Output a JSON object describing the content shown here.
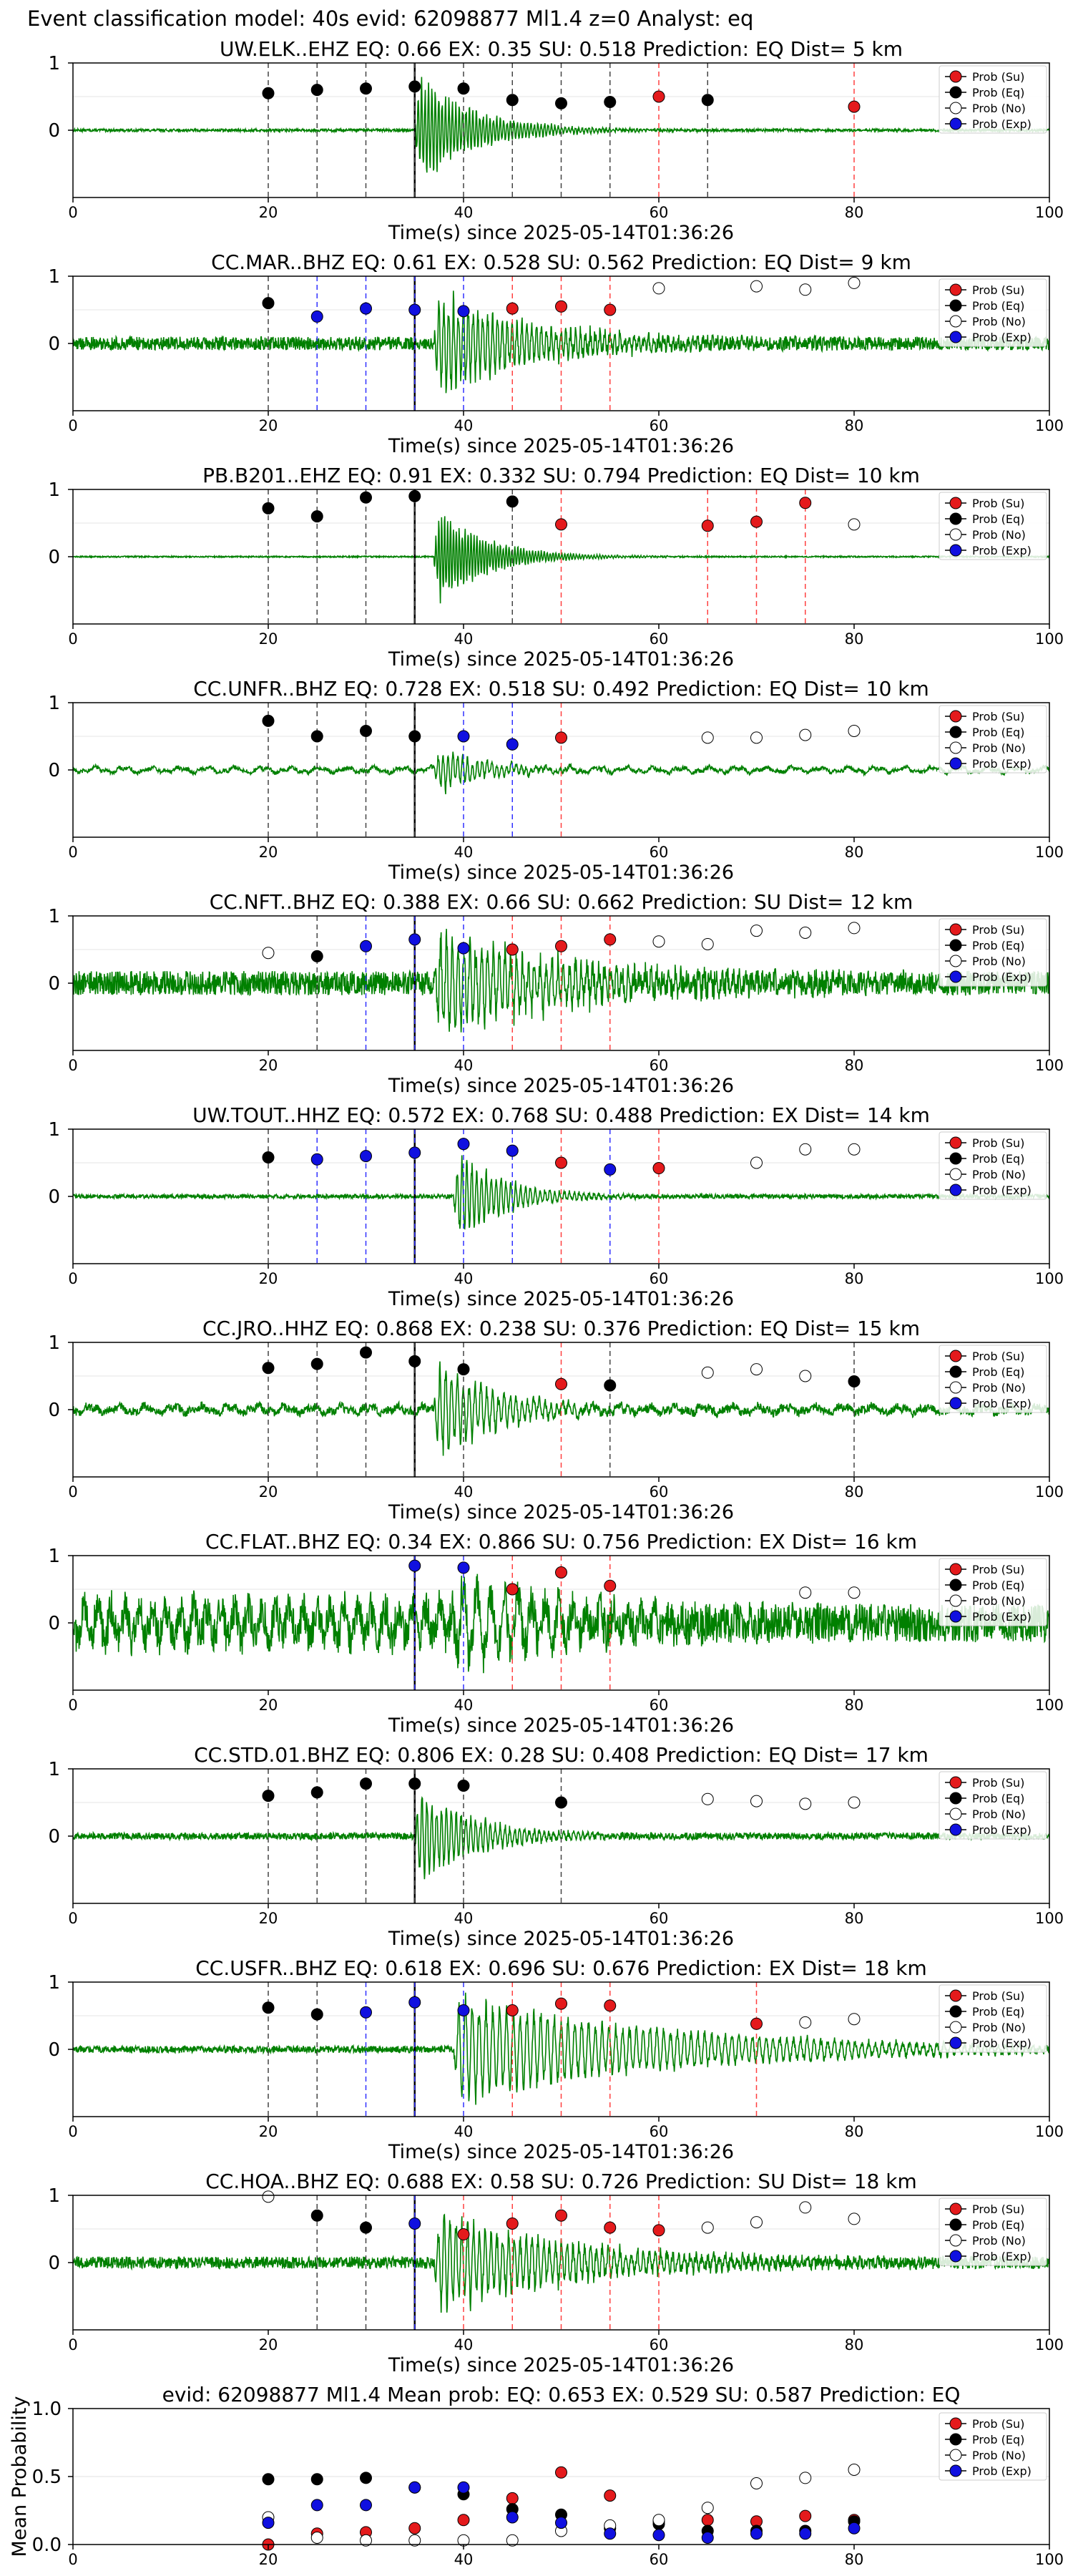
{
  "figure_title": "Event classification model: 40s evid: 62098877 Ml1.4 z=0 Analyst: eq",
  "legend_labels": [
    "Prob (Su)",
    "Prob (Eq)",
    "Prob (No)",
    "Prob (Exp)"
  ],
  "colors": {
    "su": "#e41a1c",
    "eq": "#000000",
    "no": "#ffffff",
    "exp": "#1010e0",
    "wave": "#008000"
  },
  "chart_data": [
    {
      "type": "line",
      "title": "UW.ELK..EHZ   EQ: 0.66  EX: 0.35  SU: 0.518   Prediction: EQ    Dist= 5 km",
      "xlabel": "Time(s) since 2025-05-14T01:36:26",
      "xlim": [
        0,
        100
      ],
      "ylim": [
        -1,
        1
      ],
      "xticks": [
        0,
        20,
        40,
        60,
        80,
        100
      ],
      "yticks": [
        0,
        1
      ],
      "onset": 35,
      "wave": {
        "noise": 0.02,
        "peak": 0.9,
        "decay": 6,
        "period": 0.35,
        "long": 0
      },
      "points": [
        {
          "cls": "eq",
          "t": 20,
          "p": 0.55
        },
        {
          "cls": "eq",
          "t": 25,
          "p": 0.6
        },
        {
          "cls": "eq",
          "t": 30,
          "p": 0.62
        },
        {
          "cls": "eq",
          "t": 35,
          "p": 0.65
        },
        {
          "cls": "eq",
          "t": 40,
          "p": 0.62
        },
        {
          "cls": "eq",
          "t": 45,
          "p": 0.45
        },
        {
          "cls": "eq",
          "t": 50,
          "p": 0.4
        },
        {
          "cls": "eq",
          "t": 55,
          "p": 0.42
        },
        {
          "cls": "su",
          "t": 60,
          "p": 0.5
        },
        {
          "cls": "eq",
          "t": 65,
          "p": 0.45
        },
        {
          "cls": "su",
          "t": 80,
          "p": 0.35
        }
      ]
    },
    {
      "type": "line",
      "title": "CC.MAR..BHZ   EQ: 0.61  EX: 0.528  SU: 0.562   Prediction: EQ    Dist= 9 km",
      "xlabel": "Time(s) since 2025-05-14T01:36:26",
      "xlim": [
        0,
        100
      ],
      "ylim": [
        -1,
        1
      ],
      "xticks": [
        0,
        20,
        40,
        60,
        80,
        100
      ],
      "yticks": [
        0,
        1
      ],
      "onset": 37,
      "wave": {
        "noise": 0.1,
        "peak": 0.9,
        "decay": 10,
        "period": 0.5,
        "long": 0
      },
      "points": [
        {
          "cls": "eq",
          "t": 20,
          "p": 0.6
        },
        {
          "cls": "exp",
          "t": 25,
          "p": 0.4
        },
        {
          "cls": "exp",
          "t": 30,
          "p": 0.52
        },
        {
          "cls": "exp",
          "t": 35,
          "p": 0.5
        },
        {
          "cls": "exp",
          "t": 40,
          "p": 0.48
        },
        {
          "cls": "su",
          "t": 45,
          "p": 0.52
        },
        {
          "cls": "su",
          "t": 50,
          "p": 0.55
        },
        {
          "cls": "su",
          "t": 55,
          "p": 0.5
        },
        {
          "cls": "no",
          "t": 60,
          "p": 0.82
        },
        {
          "cls": "no",
          "t": 70,
          "p": 0.85
        },
        {
          "cls": "no",
          "t": 75,
          "p": 0.8
        },
        {
          "cls": "no",
          "t": 80,
          "p": 0.9
        }
      ]
    },
    {
      "type": "line",
      "title": "PB.B201..EHZ   EQ: 0.91  EX: 0.332  SU: 0.794   Prediction: EQ    Dist= 10 km",
      "xlabel": "Time(s) since 2025-05-14T01:36:26",
      "xlim": [
        0,
        100
      ],
      "ylim": [
        -1,
        1
      ],
      "xticks": [
        0,
        20,
        40,
        60,
        80,
        100
      ],
      "yticks": [
        0,
        1
      ],
      "onset": 37,
      "wave": {
        "noise": 0.01,
        "peak": 0.85,
        "decay": 5,
        "period": 0.3,
        "long": 0
      },
      "points": [
        {
          "cls": "eq",
          "t": 20,
          "p": 0.72
        },
        {
          "cls": "eq",
          "t": 25,
          "p": 0.6
        },
        {
          "cls": "eq",
          "t": 30,
          "p": 0.88
        },
        {
          "cls": "eq",
          "t": 35,
          "p": 0.9
        },
        {
          "cls": "eq",
          "t": 45,
          "p": 0.82
        },
        {
          "cls": "su",
          "t": 50,
          "p": 0.48
        },
        {
          "cls": "su",
          "t": 65,
          "p": 0.46
        },
        {
          "cls": "su",
          "t": 70,
          "p": 0.52
        },
        {
          "cls": "su",
          "t": 75,
          "p": 0.8
        },
        {
          "cls": "no",
          "t": 80,
          "p": 0.48
        }
      ]
    },
    {
      "type": "line",
      "title": "CC.UNFR..BHZ   EQ: 0.728  EX: 0.518  SU: 0.492   Prediction: EQ    Dist= 10 km",
      "xlabel": "Time(s) since 2025-05-14T01:36:26",
      "xlim": [
        0,
        100
      ],
      "ylim": [
        -1,
        1
      ],
      "xticks": [
        0,
        20,
        40,
        60,
        80,
        100
      ],
      "yticks": [
        0,
        1
      ],
      "onset": 37,
      "wave": {
        "noise": 0.03,
        "peak": 0.4,
        "decay": 5,
        "period": 0.5,
        "long": 0.03
      },
      "points": [
        {
          "cls": "eq",
          "t": 20,
          "p": 0.73
        },
        {
          "cls": "eq",
          "t": 25,
          "p": 0.5
        },
        {
          "cls": "eq",
          "t": 30,
          "p": 0.58
        },
        {
          "cls": "eq",
          "t": 35,
          "p": 0.5
        },
        {
          "cls": "exp",
          "t": 40,
          "p": 0.5
        },
        {
          "cls": "exp",
          "t": 45,
          "p": 0.38
        },
        {
          "cls": "su",
          "t": 50,
          "p": 0.48
        },
        {
          "cls": "no",
          "t": 65,
          "p": 0.48
        },
        {
          "cls": "no",
          "t": 70,
          "p": 0.48
        },
        {
          "cls": "no",
          "t": 75,
          "p": 0.52
        },
        {
          "cls": "no",
          "t": 80,
          "p": 0.58
        }
      ]
    },
    {
      "type": "line",
      "title": "CC.NFT..BHZ   EQ: 0.388  EX: 0.66  SU: 0.662   Prediction: SU    Dist= 12 km",
      "xlabel": "Time(s) since 2025-05-14T01:36:26",
      "xlim": [
        0,
        100
      ],
      "ylim": [
        -1,
        1
      ],
      "xticks": [
        0,
        20,
        40,
        60,
        80,
        100
      ],
      "yticks": [
        0,
        1
      ],
      "onset": 37,
      "wave": {
        "noise": 0.18,
        "peak": 0.9,
        "decay": 14,
        "period": 0.6,
        "long": 0
      },
      "points": [
        {
          "cls": "no",
          "t": 20,
          "p": 0.45
        },
        {
          "cls": "eq",
          "t": 25,
          "p": 0.4
        },
        {
          "cls": "exp",
          "t": 30,
          "p": 0.55
        },
        {
          "cls": "exp",
          "t": 35,
          "p": 0.65
        },
        {
          "cls": "exp",
          "t": 40,
          "p": 0.52
        },
        {
          "cls": "su",
          "t": 45,
          "p": 0.5
        },
        {
          "cls": "su",
          "t": 50,
          "p": 0.55
        },
        {
          "cls": "su",
          "t": 55,
          "p": 0.65
        },
        {
          "cls": "no",
          "t": 60,
          "p": 0.62
        },
        {
          "cls": "no",
          "t": 65,
          "p": 0.58
        },
        {
          "cls": "no",
          "t": 70,
          "p": 0.78
        },
        {
          "cls": "no",
          "t": 75,
          "p": 0.75
        },
        {
          "cls": "no",
          "t": 80,
          "p": 0.82
        }
      ]
    },
    {
      "type": "line",
      "title": "UW.TOUT..HHZ   EQ: 0.572  EX: 0.768  SU: 0.488   Prediction: EX    Dist= 14 km",
      "xlabel": "Time(s) since 2025-05-14T01:36:26",
      "xlim": [
        0,
        100
      ],
      "ylim": [
        -1,
        1
      ],
      "xticks": [
        0,
        20,
        40,
        60,
        80,
        100
      ],
      "yticks": [
        0,
        1
      ],
      "onset": 39,
      "wave": {
        "noise": 0.03,
        "peak": 0.8,
        "decay": 5,
        "period": 0.5,
        "long": 0
      },
      "points": [
        {
          "cls": "eq",
          "t": 20,
          "p": 0.58
        },
        {
          "cls": "exp",
          "t": 25,
          "p": 0.55
        },
        {
          "cls": "exp",
          "t": 30,
          "p": 0.6
        },
        {
          "cls": "exp",
          "t": 35,
          "p": 0.65
        },
        {
          "cls": "exp",
          "t": 40,
          "p": 0.78
        },
        {
          "cls": "exp",
          "t": 45,
          "p": 0.68
        },
        {
          "cls": "su",
          "t": 50,
          "p": 0.5
        },
        {
          "cls": "exp",
          "t": 55,
          "p": 0.4
        },
        {
          "cls": "su",
          "t": 60,
          "p": 0.42
        },
        {
          "cls": "no",
          "t": 70,
          "p": 0.5
        },
        {
          "cls": "no",
          "t": 75,
          "p": 0.7
        },
        {
          "cls": "no",
          "t": 80,
          "p": 0.7
        }
      ]
    },
    {
      "type": "line",
      "title": "CC.JRO..HHZ   EQ: 0.868  EX: 0.238  SU: 0.376   Prediction: EQ    Dist= 15 km",
      "xlabel": "Time(s) since 2025-05-14T01:36:26",
      "xlim": [
        0,
        100
      ],
      "ylim": [
        -1,
        1
      ],
      "xticks": [
        0,
        20,
        40,
        60,
        80,
        100
      ],
      "yticks": [
        0,
        1
      ],
      "onset": 37,
      "wave": {
        "noise": 0.06,
        "peak": 0.9,
        "decay": 6,
        "period": 0.6,
        "long": 0.04
      },
      "points": [
        {
          "cls": "eq",
          "t": 20,
          "p": 0.62
        },
        {
          "cls": "eq",
          "t": 25,
          "p": 0.68
        },
        {
          "cls": "eq",
          "t": 30,
          "p": 0.85
        },
        {
          "cls": "eq",
          "t": 35,
          "p": 0.72
        },
        {
          "cls": "eq",
          "t": 40,
          "p": 0.6
        },
        {
          "cls": "su",
          "t": 50,
          "p": 0.38
        },
        {
          "cls": "eq",
          "t": 55,
          "p": 0.36
        },
        {
          "cls": "no",
          "t": 65,
          "p": 0.55
        },
        {
          "cls": "no",
          "t": 70,
          "p": 0.6
        },
        {
          "cls": "no",
          "t": 75,
          "p": 0.5
        },
        {
          "cls": "eq",
          "t": 80,
          "p": 0.42
        }
      ]
    },
    {
      "type": "line",
      "title": "CC.FLAT..BHZ   EQ: 0.34  EX: 0.866  SU: 0.756   Prediction: EX    Dist= 16 km",
      "xlabel": "Time(s) since 2025-05-14T01:36:26",
      "xlim": [
        0,
        100
      ],
      "ylim": [
        -1,
        1
      ],
      "xticks": [
        0,
        20,
        40,
        60,
        80,
        100
      ],
      "yticks": [
        0,
        1
      ],
      "onset": 39,
      "wave": {
        "noise": 0.28,
        "peak": 0.8,
        "decay": 12,
        "period": 1.4,
        "long": 0
      },
      "points": [
        {
          "cls": "exp",
          "t": 35,
          "p": 0.85
        },
        {
          "cls": "exp",
          "t": 40,
          "p": 0.82
        },
        {
          "cls": "su",
          "t": 45,
          "p": 0.5
        },
        {
          "cls": "su",
          "t": 50,
          "p": 0.75
        },
        {
          "cls": "su",
          "t": 55,
          "p": 0.55
        },
        {
          "cls": "no",
          "t": 75,
          "p": 0.45
        },
        {
          "cls": "no",
          "t": 80,
          "p": 0.45
        }
      ]
    },
    {
      "type": "line",
      "title": "CC.STD.01.BHZ   EQ: 0.806  EX: 0.28  SU: 0.408   Prediction: EQ    Dist= 17 km",
      "xlabel": "Time(s) since 2025-05-14T01:36:26",
      "xlim": [
        0,
        100
      ],
      "ylim": [
        -1,
        1
      ],
      "xticks": [
        0,
        20,
        40,
        60,
        80,
        100
      ],
      "yticks": [
        0,
        1
      ],
      "onset": 35,
      "wave": {
        "noise": 0.05,
        "peak": 0.8,
        "decay": 6,
        "period": 0.5,
        "long": 0
      },
      "points": [
        {
          "cls": "eq",
          "t": 20,
          "p": 0.6
        },
        {
          "cls": "eq",
          "t": 25,
          "p": 0.65
        },
        {
          "cls": "eq",
          "t": 30,
          "p": 0.78
        },
        {
          "cls": "eq",
          "t": 35,
          "p": 0.78
        },
        {
          "cls": "eq",
          "t": 40,
          "p": 0.75
        },
        {
          "cls": "eq",
          "t": 50,
          "p": 0.5
        },
        {
          "cls": "no",
          "t": 65,
          "p": 0.55
        },
        {
          "cls": "no",
          "t": 70,
          "p": 0.52
        },
        {
          "cls": "no",
          "t": 75,
          "p": 0.48
        },
        {
          "cls": "no",
          "t": 80,
          "p": 0.5
        }
      ]
    },
    {
      "type": "line",
      "title": "CC.USFR..BHZ   EQ: 0.618  EX: 0.696  SU: 0.676   Prediction: EX    Dist= 18 km",
      "xlabel": "Time(s) since 2025-05-14T01:36:26",
      "xlim": [
        0,
        100
      ],
      "ylim": [
        -1,
        1
      ],
      "xticks": [
        0,
        20,
        40,
        60,
        80,
        100
      ],
      "yticks": [
        0,
        1
      ],
      "onset": 39,
      "wave": {
        "noise": 0.05,
        "peak": 0.9,
        "decay": 22,
        "period": 0.7,
        "long": 0
      },
      "points": [
        {
          "cls": "eq",
          "t": 20,
          "p": 0.62
        },
        {
          "cls": "eq",
          "t": 25,
          "p": 0.52
        },
        {
          "cls": "exp",
          "t": 30,
          "p": 0.55
        },
        {
          "cls": "exp",
          "t": 35,
          "p": 0.7
        },
        {
          "cls": "exp",
          "t": 40,
          "p": 0.58
        },
        {
          "cls": "su",
          "t": 45,
          "p": 0.58
        },
        {
          "cls": "su",
          "t": 50,
          "p": 0.68
        },
        {
          "cls": "su",
          "t": 55,
          "p": 0.65
        },
        {
          "cls": "su",
          "t": 70,
          "p": 0.38
        },
        {
          "cls": "no",
          "t": 75,
          "p": 0.4
        },
        {
          "cls": "no",
          "t": 80,
          "p": 0.45
        }
      ]
    },
    {
      "type": "line",
      "title": "CC.HOA..BHZ   EQ: 0.688  EX: 0.58  SU: 0.726   Prediction: SU    Dist= 18 km",
      "xlabel": "Time(s) since 2025-05-14T01:36:26",
      "xlim": [
        0,
        100
      ],
      "ylim": [
        -1,
        1
      ],
      "xticks": [
        0,
        20,
        40,
        60,
        80,
        100
      ],
      "yticks": [
        0,
        1
      ],
      "onset": 37,
      "wave": {
        "noise": 0.09,
        "peak": 0.85,
        "decay": 14,
        "period": 0.6,
        "long": 0
      },
      "points": [
        {
          "cls": "no",
          "t": 20,
          "p": 0.98
        },
        {
          "cls": "eq",
          "t": 25,
          "p": 0.7
        },
        {
          "cls": "eq",
          "t": 30,
          "p": 0.52
        },
        {
          "cls": "exp",
          "t": 35,
          "p": 0.58
        },
        {
          "cls": "su",
          "t": 40,
          "p": 0.42
        },
        {
          "cls": "su",
          "t": 45,
          "p": 0.58
        },
        {
          "cls": "su",
          "t": 50,
          "p": 0.7
        },
        {
          "cls": "su",
          "t": 55,
          "p": 0.52
        },
        {
          "cls": "su",
          "t": 60,
          "p": 0.48
        },
        {
          "cls": "no",
          "t": 65,
          "p": 0.52
        },
        {
          "cls": "no",
          "t": 70,
          "p": 0.6
        },
        {
          "cls": "no",
          "t": 75,
          "p": 0.82
        },
        {
          "cls": "no",
          "t": 80,
          "p": 0.65
        }
      ]
    },
    {
      "type": "scatter",
      "title": "evid: 62098877  Ml1.4   Mean prob:   EQ: 0.653  EX: 0.529  SU: 0.587   Prediction: EQ",
      "xlabel": "",
      "ylabel": "Mean Probability",
      "xlim": [
        0,
        100
      ],
      "ylim": [
        0,
        1
      ],
      "xticks": [
        0,
        20,
        40,
        60,
        80,
        100
      ],
      "yticks": [
        0.0,
        0.5,
        1.0
      ],
      "ytick_labels": [
        "0.0",
        "0.5",
        "1.0"
      ],
      "grid": true,
      "legend": "top-right",
      "t": [
        20,
        25,
        30,
        35,
        40,
        45,
        50,
        55,
        60,
        65,
        70,
        75,
        80
      ],
      "series": [
        {
          "name": "Prob (Su)",
          "cls": "su",
          "values": [
            0.0,
            0.08,
            0.09,
            0.12,
            0.18,
            0.34,
            0.53,
            0.36,
            0.17,
            0.18,
            0.17,
            0.21,
            0.18
          ]
        },
        {
          "name": "Prob (Eq)",
          "cls": "eq",
          "values": [
            0.48,
            0.48,
            0.49,
            0.42,
            0.37,
            0.26,
            0.22,
            0.12,
            0.15,
            0.1,
            0.1,
            0.1,
            0.17
          ]
        },
        {
          "name": "Prob (No)",
          "cls": "no",
          "values": [
            0.2,
            0.05,
            0.03,
            0.03,
            0.03,
            0.03,
            0.1,
            0.14,
            0.18,
            0.27,
            0.45,
            0.49,
            0.55
          ]
        },
        {
          "name": "Prob (Exp)",
          "cls": "exp",
          "values": [
            0.16,
            0.29,
            0.29,
            0.42,
            0.42,
            0.2,
            0.16,
            0.08,
            0.07,
            0.05,
            0.08,
            0.08,
            0.12
          ]
        }
      ]
    }
  ]
}
